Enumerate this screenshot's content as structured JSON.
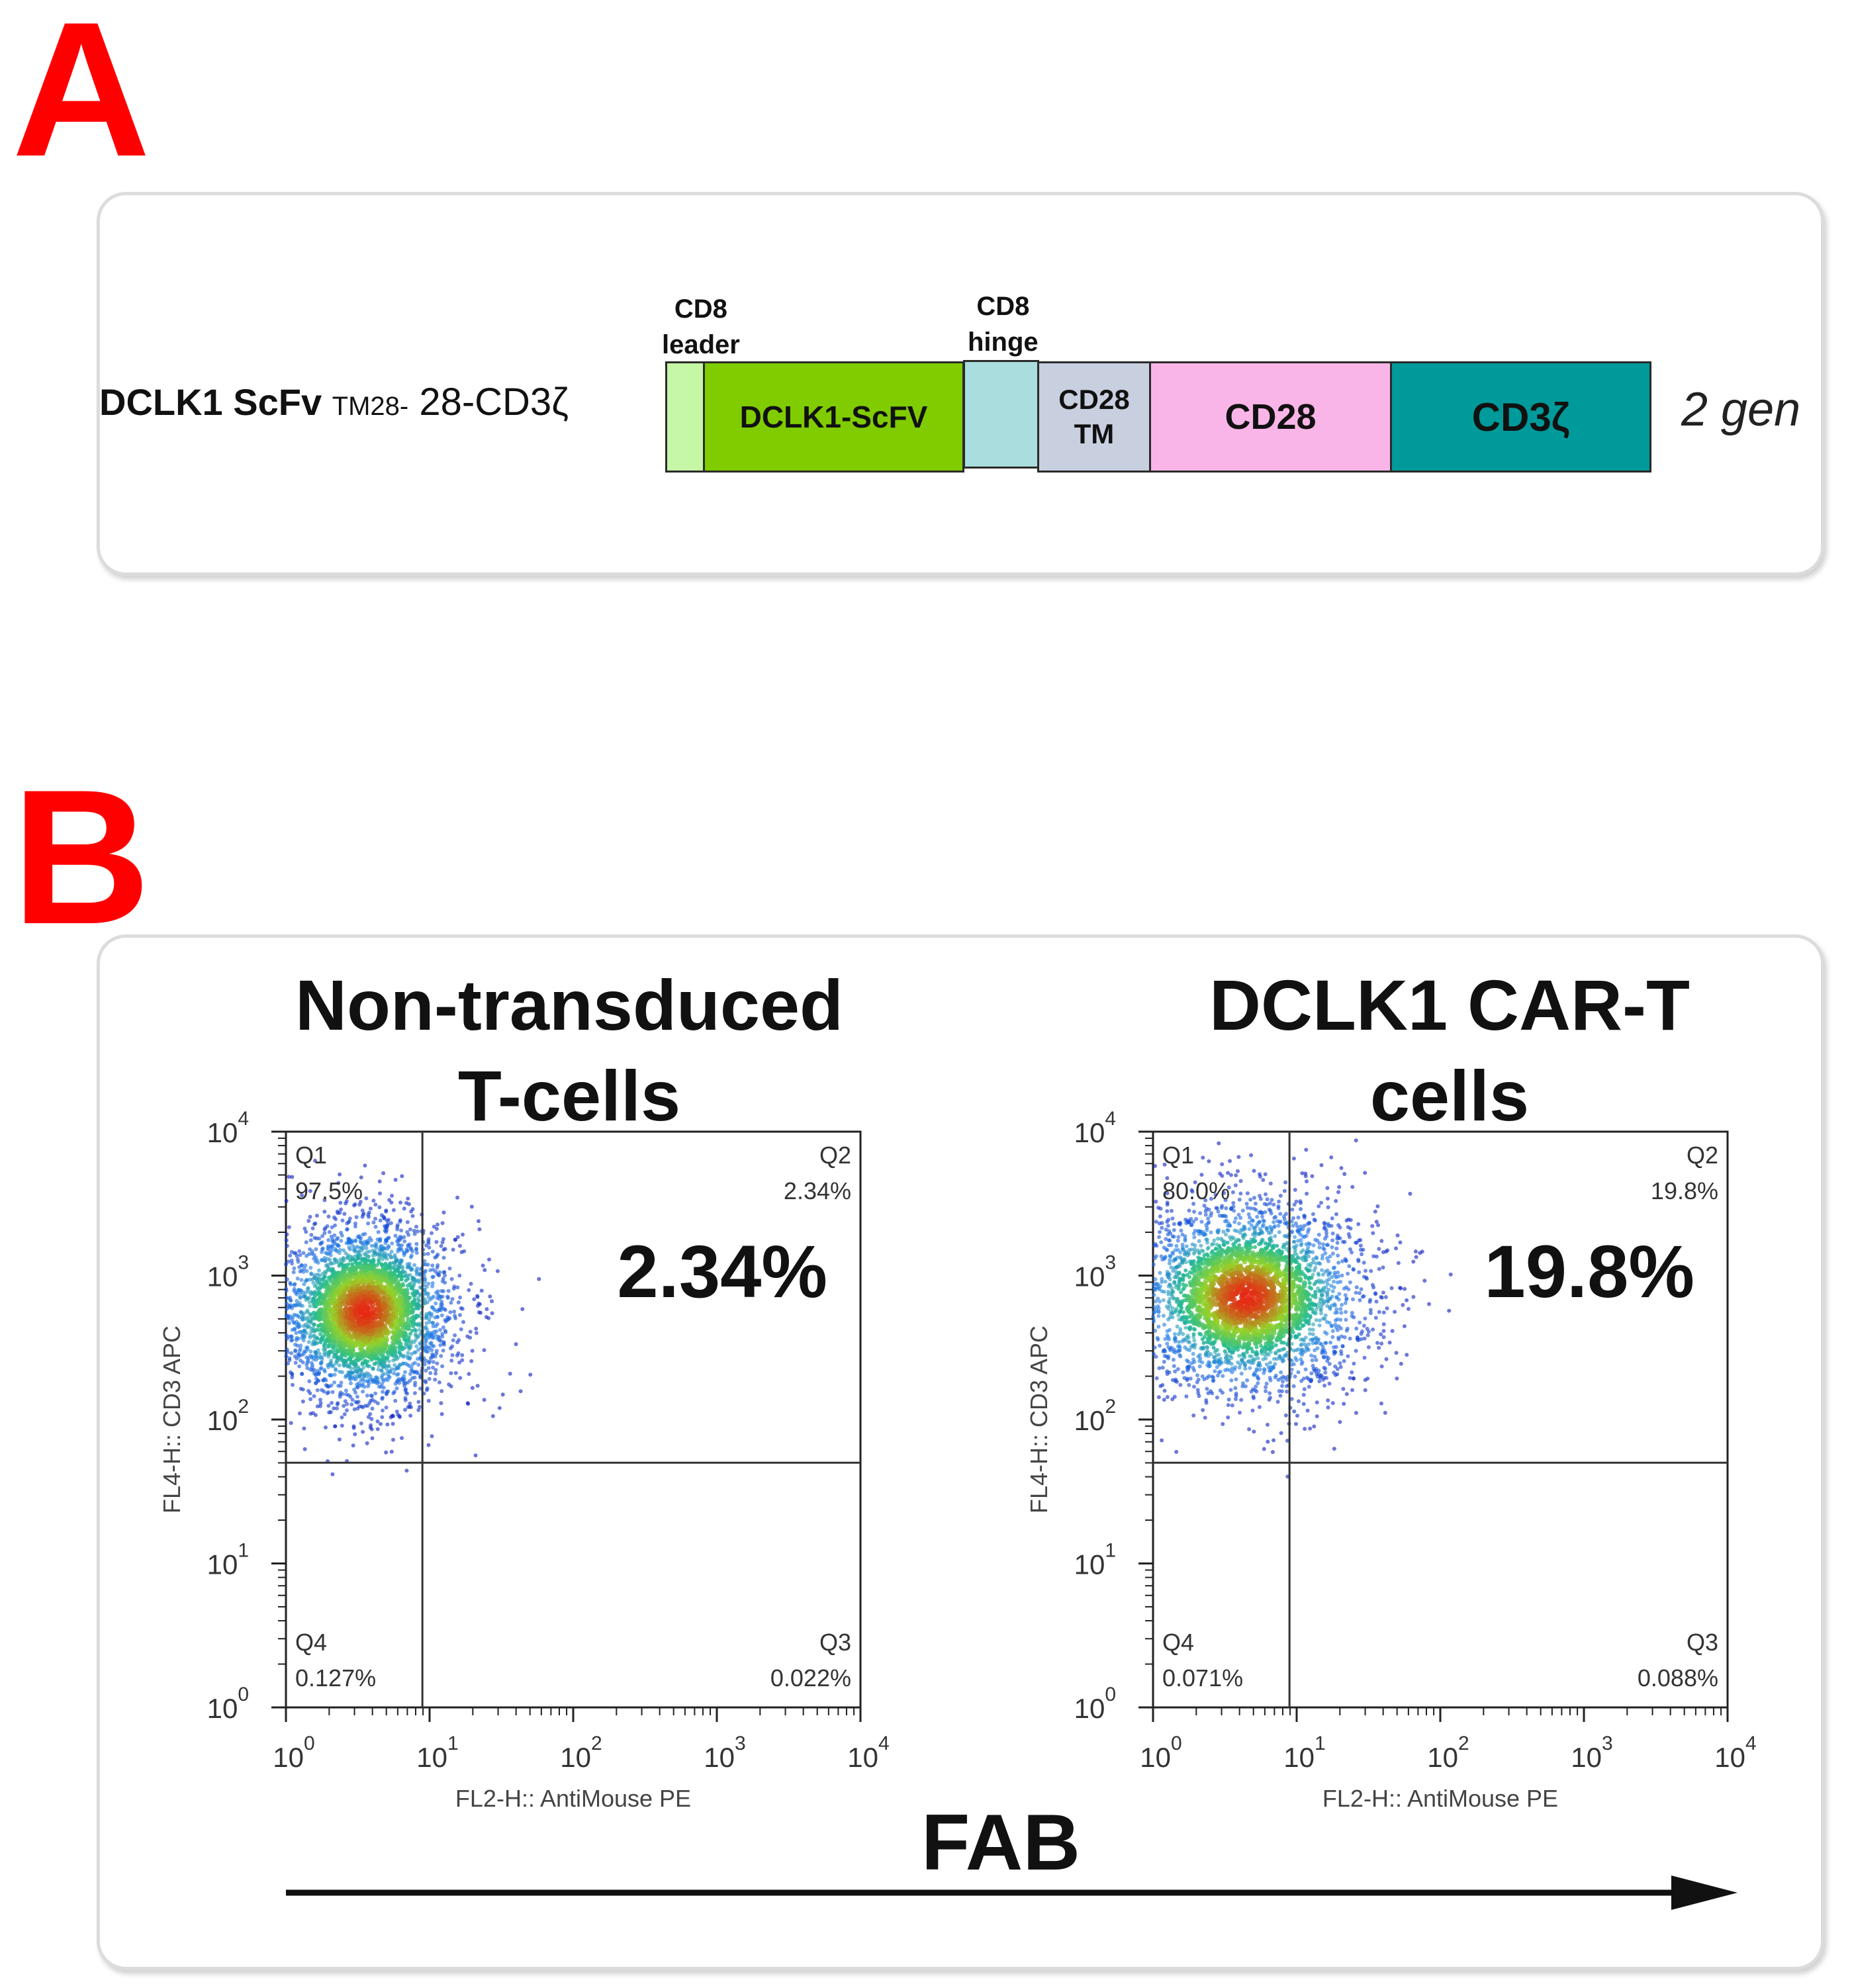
{
  "panel_a": {
    "letter": "A",
    "construct": {
      "name_main": "DCLK1 ScFv ",
      "name_sub": "TM28-",
      "name_suffix": " 28-CD3ζ",
      "generation": "2 gen",
      "segments": [
        {
          "id": "cd8-leader",
          "label": "",
          "top_label": "CD8\nleader",
          "color": "#c6f7a6"
        },
        {
          "id": "scfv",
          "label": "DCLK1-ScFV",
          "top_label": "",
          "color": "#80cc00"
        },
        {
          "id": "cd8-hinge",
          "label": "",
          "top_label": "CD8\nhinge",
          "color": "#aadddd"
        },
        {
          "id": "cd28-tm",
          "label": "CD28\nTM",
          "top_label": "",
          "color": "#c8cfdf"
        },
        {
          "id": "cd28",
          "label": "CD28",
          "top_label": "",
          "color": "#f9b5e8"
        },
        {
          "id": "cd3z",
          "label": "CD3ζ",
          "top_label": "",
          "color": "#009a9a"
        }
      ]
    }
  },
  "panel_b": {
    "letter": "B",
    "axis_arrow_label": "FAB",
    "plots": [
      {
        "id": "non-transduced",
        "title": "Non-transduced\nT-cells",
        "big_percent": "2.34%",
        "xlabel": "FL2-H:: AntiMouse PE",
        "ylabel": "FL4-H:: CD3 APC",
        "x_ticks": [
          "10^0",
          "10^1",
          "10^2",
          "10^3",
          "10^4"
        ],
        "y_ticks": [
          "10^0",
          "10^1",
          "10^2",
          "10^3",
          "10^4"
        ],
        "quadrants": {
          "Q1": {
            "name": "Q1",
            "value": "97.5%"
          },
          "Q2": {
            "name": "Q2",
            "value": "2.34%"
          },
          "Q3": {
            "name": "Q3",
            "value": "0.022%"
          },
          "Q4": {
            "name": "Q4",
            "value": "0.127%"
          }
        },
        "gate": {
          "x": 0.95,
          "y": 1.7
        },
        "population": {
          "cx": 0.55,
          "cy": 2.75,
          "sx": 0.32,
          "sy": 0.32
        }
      },
      {
        "id": "dclk1-car-t",
        "title": "DCLK1 CAR-T\ncells",
        "big_percent": "19.8%",
        "xlabel": "FL2-H:: AntiMouse PE",
        "ylabel": "FL4-H:: CD3 APC",
        "x_ticks": [
          "10^0",
          "10^1",
          "10^2",
          "10^3",
          "10^4"
        ],
        "y_ticks": [
          "10^0",
          "10^1",
          "10^2",
          "10^3",
          "10^4"
        ],
        "quadrants": {
          "Q1": {
            "name": "Q1",
            "value": "80.0%"
          },
          "Q2": {
            "name": "Q2",
            "value": "19.8%"
          },
          "Q3": {
            "name": "Q3",
            "value": "0.088%"
          },
          "Q4": {
            "name": "Q4",
            "value": "0.071%"
          }
        },
        "gate": {
          "x": 0.95,
          "y": 1.7
        },
        "population": {
          "cx": 0.65,
          "cy": 2.85,
          "sx": 0.42,
          "sy": 0.34
        }
      }
    ]
  }
}
